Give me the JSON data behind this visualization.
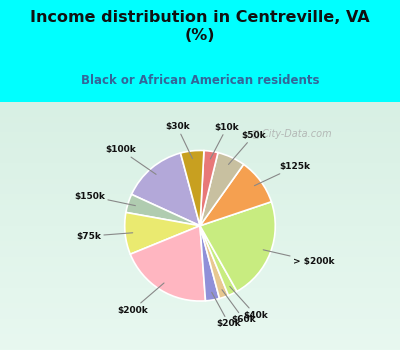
{
  "title": "Income distribution in Centreville, VA\n(%)",
  "subtitle": "Black or African American residents",
  "title_color": "#111111",
  "subtitle_color": "#336699",
  "top_bg": "#00FFFF",
  "chart_bg_top": "#d8f0e4",
  "chart_bg_bottom": "#e8f8f0",
  "watermark": "City-Data.com",
  "labels": [
    "$100k",
    "$150k",
    "$75k",
    "$200k",
    "$20k",
    "$60k",
    "$40k",
    "> $200k",
    "$125k",
    "$50k",
    "$10k",
    "$30k"
  ],
  "values": [
    14,
    4,
    9,
    20,
    3,
    2,
    2,
    22,
    10,
    6,
    3,
    5
  ],
  "colors": [
    "#b3a8d9",
    "#b0ccb0",
    "#eaea70",
    "#ffb6c1",
    "#9090d8",
    "#e8c890",
    "#c8ec80",
    "#c8ec80",
    "#f5a050",
    "#c8c0a0",
    "#e87878",
    "#c8a020"
  ],
  "start_angle": 105
}
